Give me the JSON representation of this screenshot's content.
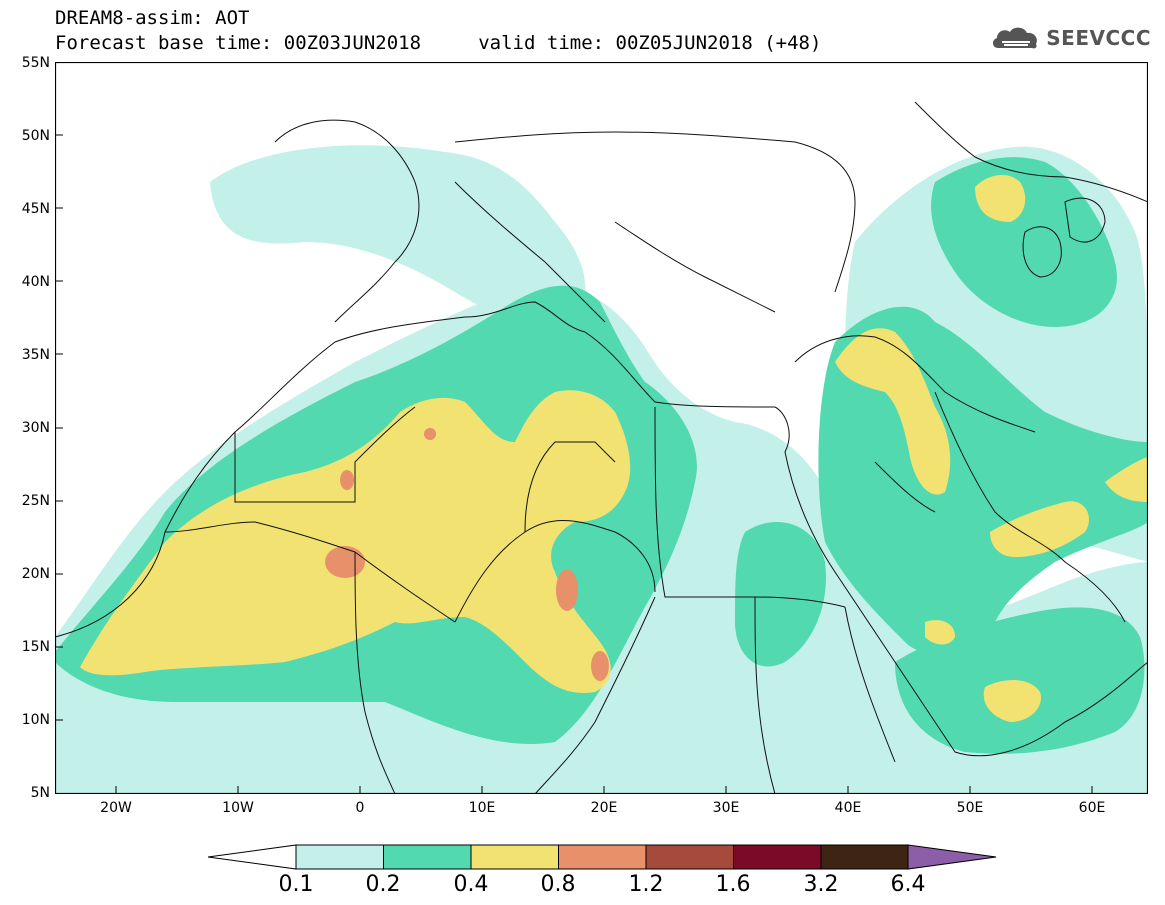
{
  "header": {
    "line1": "DREAM8-assim: AOT",
    "line2": "Forecast base time: 00Z03JUN2018     valid time: 00Z05JUN2018 (+48)"
  },
  "brand": {
    "name": "SEEVCCC",
    "icon": "cloud-logo-icon"
  },
  "axes": {
    "lat_labels": [
      "55N",
      "50N",
      "45N",
      "40N",
      "35N",
      "30N",
      "25N",
      "20N",
      "15N",
      "10N",
      "5N"
    ],
    "lon_labels": [
      "20W",
      "10W",
      "0",
      "10E",
      "20E",
      "30E",
      "40E",
      "50E",
      "60E"
    ]
  },
  "colorbar": {
    "labels": [
      "0.1",
      "0.2",
      "0.4",
      "0.8",
      "1.2",
      "1.6",
      "3.2",
      "6.4"
    ],
    "colors": [
      "#c4f0ea",
      "#52d9b0",
      "#f2e272",
      "#e8906a",
      "#a64a3c",
      "#7a0a28",
      "#3e2413",
      "#8d5ea8"
    ]
  },
  "colors": {
    "light": "#c4f0ea",
    "green": "#52d9b0",
    "yellow": "#f2e272",
    "orange": "#e8906a"
  }
}
